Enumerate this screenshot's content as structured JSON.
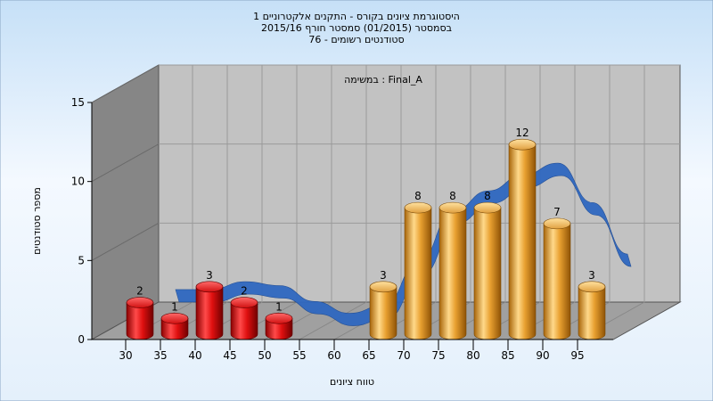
{
  "chart_data": {
    "type": "bar",
    "title_lines": [
      "היסטוגרמת ציונים בקורס - התקנים אלקטרוניים 1",
      "בסמסטר  (01/2015)  סמסטר חורף 2015/16",
      "סטודנטים רשומים - 76"
    ],
    "annotation": "במשימה : Final_A",
    "xlabel": "טווח ציונים",
    "ylabel": "מספר סטודנטים",
    "x_ticks": [
      "30",
      "35",
      "40",
      "45",
      "50",
      "55",
      "60",
      "65",
      "70",
      "75",
      "80",
      "85",
      "90",
      "95"
    ],
    "y_ticks": [
      "0",
      "5",
      "10",
      "15"
    ],
    "ylim": [
      0,
      15
    ],
    "categories": [
      "30",
      "35",
      "40",
      "45",
      "50",
      "55",
      "60",
      "65",
      "70",
      "75",
      "80",
      "85",
      "90",
      "95"
    ],
    "values": [
      2,
      1,
      3,
      2,
      1,
      0,
      0,
      3,
      8,
      8,
      8,
      12,
      7,
      3
    ],
    "data_labels": [
      "2",
      "1",
      "3",
      "2",
      "1",
      "",
      "",
      "3",
      "8",
      "8",
      "8",
      "12",
      "7",
      "3"
    ],
    "colors": {
      "low": "#e01010",
      "high": "#e8a030",
      "curve": "#2f68c0",
      "curve_flat": "#6a6a6a"
    },
    "grid": true,
    "legend": "none"
  }
}
